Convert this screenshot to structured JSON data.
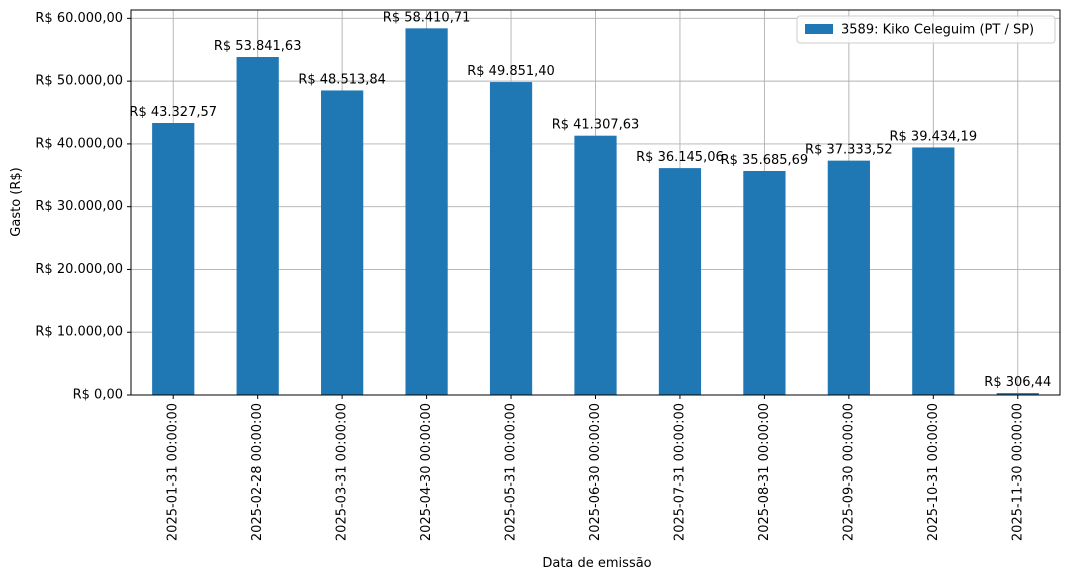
{
  "chart_data": {
    "type": "bar",
    "xlabel": "Data de emissão",
    "ylabel": "Gasto (R$)",
    "categories": [
      "2025-01-31 00:00:00",
      "2025-02-28 00:00:00",
      "2025-03-31 00:00:00",
      "2025-04-30 00:00:00",
      "2025-05-31 00:00:00",
      "2025-06-30 00:00:00",
      "2025-07-31 00:00:00",
      "2025-08-31 00:00:00",
      "2025-09-30 00:00:00",
      "2025-10-31 00:00:00",
      "2025-11-30 00:00:00"
    ],
    "series": [
      {
        "name": "3589: Kiko Celeguim (PT / SP)",
        "color": "#1f77b4",
        "values": [
          43327.57,
          53841.63,
          48513.84,
          58410.71,
          49851.4,
          41307.63,
          36145.06,
          35685.69,
          37333.52,
          39434.19,
          306.44
        ],
        "value_labels": [
          "R$ 43.327,57",
          "R$ 53.841,63",
          "R$ 48.513,84",
          "R$ 58.410,71",
          "R$ 49.851,40",
          "R$ 41.307,63",
          "R$ 36.145,06",
          "R$ 35.685,69",
          "R$ 37.333,52",
          "R$ 39.434,19",
          "R$ 306,44"
        ]
      }
    ],
    "ylim": [
      0,
      61331.25
    ],
    "yticks": [
      {
        "value": 0,
        "label": "R$ 0,00"
      },
      {
        "value": 10000,
        "label": "R$ 10.000,00"
      },
      {
        "value": 20000,
        "label": "R$ 20.000,00"
      },
      {
        "value": 30000,
        "label": "R$ 30.000,00"
      },
      {
        "value": 40000,
        "label": "R$ 40.000,00"
      },
      {
        "value": 50000,
        "label": "R$ 50.000,00"
      },
      {
        "value": 60000,
        "label": "R$ 60.000,00"
      }
    ],
    "grid": true,
    "legend": "upper right"
  }
}
